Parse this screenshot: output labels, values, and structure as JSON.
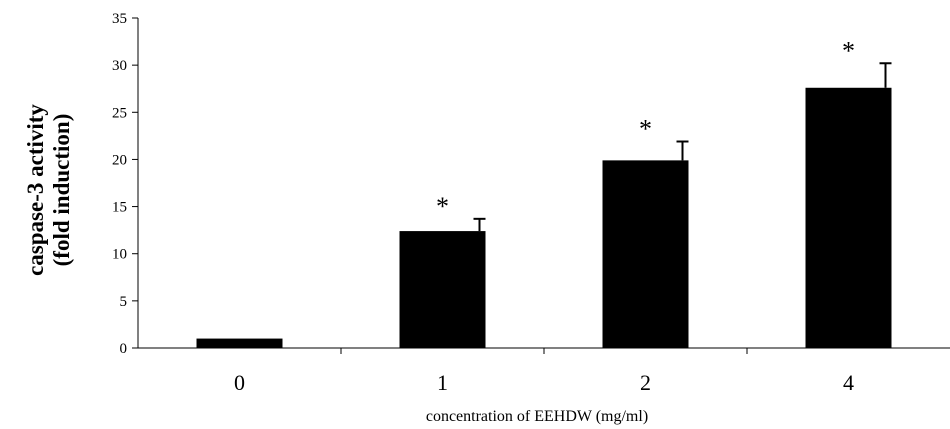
{
  "chart_data": {
    "type": "bar",
    "categories": [
      "0",
      "1",
      "2",
      "4"
    ],
    "series": [
      {
        "values": [
          1.0,
          12.4,
          19.9,
          27.6
        ],
        "errors": [
          0,
          1.3,
          2.0,
          2.6
        ],
        "significance": [
          "",
          "*",
          "*",
          "*"
        ]
      }
    ],
    "xlabel": "concentration of EEHDW (mg/ml)",
    "ylabel_line1": "caspase-3 activity",
    "ylabel_line2": "(fold induction)",
    "ylim": [
      0,
      35
    ],
    "yticks": [
      0,
      5,
      10,
      15,
      20,
      25,
      30,
      35
    ],
    "bar_color": "#000000",
    "grid": false,
    "legend": "none"
  }
}
